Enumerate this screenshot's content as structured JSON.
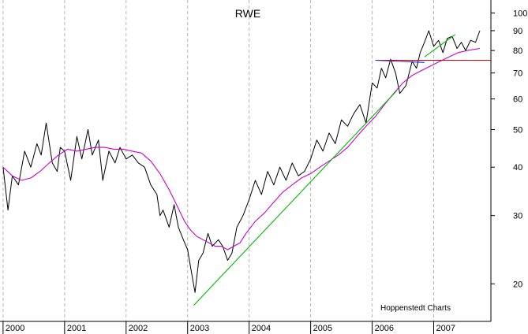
{
  "chart_data": {
    "type": "line",
    "title": "RWE",
    "credit": "Hoppenstedt Charts",
    "y_scale": "log",
    "ylim": [
      16,
      108
    ],
    "xlim": [
      1999.95,
      2007.93
    ],
    "y_ticks": [
      {
        "value": 20,
        "label": "20"
      },
      {
        "value": 30,
        "label": "30"
      },
      {
        "value": 40,
        "label": "40"
      },
      {
        "value": 50,
        "label": "50"
      },
      {
        "value": 60,
        "label": "60"
      },
      {
        "value": 70,
        "label": "70"
      },
      {
        "value": 80,
        "label": "80"
      },
      {
        "value": 90,
        "label": "90"
      },
      {
        "value": 100,
        "label": "100"
      }
    ],
    "x_ticks": [
      {
        "value": 2000,
        "label": "2000"
      },
      {
        "value": 2001,
        "label": "2001"
      },
      {
        "value": 2002,
        "label": "2002"
      },
      {
        "value": 2003,
        "label": "2003"
      },
      {
        "value": 2004,
        "label": "2004"
      },
      {
        "value": 2005,
        "label": "2005"
      },
      {
        "value": 2006,
        "label": "2006"
      },
      {
        "value": 2007,
        "label": "2007"
      }
    ],
    "grid": "vertical-dashed",
    "series": [
      {
        "name": "Price",
        "color": "#000000",
        "x": [
          2000.0,
          2000.08,
          2000.15,
          2000.25,
          2000.35,
          2000.45,
          2000.55,
          2000.62,
          2000.7,
          2000.8,
          2000.88,
          2000.93,
          2001.0,
          2001.1,
          2001.2,
          2001.28,
          2001.38,
          2001.45,
          2001.55,
          2001.62,
          2001.72,
          2001.82,
          2001.9,
          2002.0,
          2002.1,
          2002.2,
          2002.3,
          2002.4,
          2002.5,
          2002.55,
          2002.6,
          2002.7,
          2002.78,
          2002.85,
          2002.93,
          2003.0,
          2003.05,
          2003.12,
          2003.18,
          2003.25,
          2003.33,
          2003.4,
          2003.5,
          2003.57,
          2003.65,
          2003.72,
          2003.8,
          2003.9,
          2004.0,
          2004.1,
          2004.2,
          2004.3,
          2004.4,
          2004.5,
          2004.6,
          2004.7,
          2004.8,
          2004.9,
          2005.0,
          2005.1,
          2005.2,
          2005.3,
          2005.4,
          2005.5,
          2005.6,
          2005.7,
          2005.8,
          2005.9,
          2006.0,
          2006.08,
          2006.15,
          2006.22,
          2006.3,
          2006.38,
          2006.45,
          2006.55,
          2006.65,
          2006.72,
          2006.78,
          2006.85,
          2006.92,
          2007.0,
          2007.08,
          2007.15,
          2007.22,
          2007.3,
          2007.38,
          2007.45,
          2007.52,
          2007.6,
          2007.68,
          2007.75
        ],
        "y": [
          40,
          31,
          38,
          36,
          44,
          40,
          46,
          43,
          52,
          41,
          39,
          45,
          44,
          37,
          48,
          42,
          50,
          43,
          47,
          37,
          44,
          41,
          45,
          42,
          43,
          41,
          40,
          36,
          34,
          30,
          31,
          28,
          32,
          28,
          26,
          24.5,
          22,
          19,
          23,
          24,
          27,
          25,
          26,
          25,
          23,
          24,
          28,
          30,
          33,
          37,
          34,
          39,
          36,
          40,
          37,
          41,
          38,
          39,
          42,
          47,
          44,
          49,
          46,
          53,
          51,
          55,
          58,
          52,
          66,
          64,
          72,
          68,
          76,
          70,
          62,
          65,
          75,
          72,
          79,
          84,
          90,
          82,
          85,
          79,
          86,
          87,
          81,
          84,
          80,
          85,
          84,
          90
        ]
      },
      {
        "name": "Moving average",
        "color": "#cc00cc",
        "x": [
          2000.0,
          2000.15,
          2000.3,
          2000.45,
          2000.6,
          2000.75,
          2000.9,
          2001.05,
          2001.2,
          2001.35,
          2001.5,
          2001.65,
          2001.8,
          2001.95,
          2002.1,
          2002.25,
          2002.4,
          2002.55,
          2002.7,
          2002.82,
          2002.95,
          2003.05,
          2003.15,
          2003.25,
          2003.35,
          2003.45,
          2003.55,
          2003.65,
          2003.75,
          2003.85,
          2003.95,
          2004.1,
          2004.25,
          2004.4,
          2004.55,
          2004.7,
          2004.85,
          2005.0,
          2005.15,
          2005.3,
          2005.45,
          2005.6,
          2005.75,
          2005.9,
          2006.05,
          2006.2,
          2006.35,
          2006.5,
          2006.65,
          2006.8,
          2006.95,
          2007.1,
          2007.25,
          2007.4,
          2007.55,
          2007.75
        ],
        "y": [
          40,
          38,
          37,
          37.5,
          39,
          41,
          43,
          44.5,
          44,
          44.5,
          45,
          45,
          44.5,
          44.5,
          44,
          43.5,
          41.5,
          38.5,
          35,
          32,
          29,
          27.5,
          26.5,
          26,
          25.5,
          25,
          25,
          24.5,
          25,
          25.5,
          27,
          29,
          30.5,
          32.5,
          34.5,
          36,
          37.5,
          38.5,
          40,
          41.5,
          43,
          45,
          48,
          51,
          54,
          58,
          62,
          66,
          69,
          71,
          73,
          75,
          77,
          79,
          80,
          81
        ]
      },
      {
        "name": "Uptrend line",
        "color": "#00bb00",
        "x": [
          2003.1,
          2006.4
        ],
        "y": [
          17.6,
          63
        ]
      },
      {
        "name": "Short uptrend line",
        "color": "#00bb00",
        "x": [
          2006.85,
          2007.35
        ],
        "y": [
          77,
          88
        ]
      },
      {
        "name": "Support line",
        "color": "#dd0000",
        "x": [
          2006.05,
          2007.93
        ],
        "y": [
          75.5,
          75.5
        ]
      },
      {
        "name": "Resistance line",
        "color": "#2b2bd0",
        "x": [
          2006.05,
          2006.85
        ],
        "y": [
          75.5,
          74.5
        ]
      }
    ]
  }
}
